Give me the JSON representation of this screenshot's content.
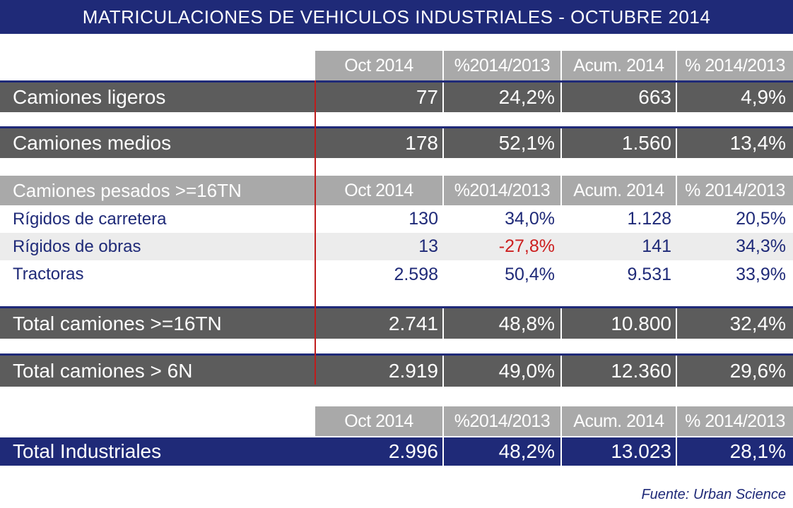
{
  "title": "MATRICULACIONES DE VEHICULOS INDUSTRIALES - OCTUBRE 2014",
  "columns": [
    "Oct 2014",
    "%2014/2013",
    "Acum. 2014",
    "% 2014/2013"
  ],
  "rows": {
    "ligeros": {
      "label": "Camiones ligeros",
      "v": [
        "77",
        "24,2%",
        "663",
        "4,9%"
      ]
    },
    "medios": {
      "label": "Camiones medios",
      "v": [
        "178",
        "52,1%",
        "1.560",
        "13,4%"
      ]
    },
    "pesados_header": {
      "label": "Camiones pesados >=16TN",
      "v": [
        "Oct 2014",
        "%2014/2013",
        "Acum. 2014",
        "% 2014/2013"
      ]
    },
    "rigidos_carretera": {
      "label": "Rígidos de carretera",
      "v": [
        "130",
        "34,0%",
        "1.128",
        "20,5%"
      ]
    },
    "rigidos_obras": {
      "label": "Rígidos de obras",
      "v": [
        "13",
        "-27,8%",
        "141",
        "34,3%"
      ]
    },
    "tractoras": {
      "label": "Tractoras",
      "v": [
        "2.598",
        "50,4%",
        "9.531",
        "33,9%"
      ]
    },
    "total_16": {
      "label": "Total camiones >=16TN",
      "v": [
        "2.741",
        "48,8%",
        "10.800",
        "32,4%"
      ]
    },
    "total_6": {
      "label": "Total camiones > 6N",
      "v": [
        "2.919",
        "49,0%",
        "12.360",
        "29,6%"
      ]
    },
    "total_ind": {
      "label": "Total Industriales",
      "v": [
        "2.996",
        "48,2%",
        "13.023",
        "28,1%"
      ]
    }
  },
  "source": "Fuente: Urban Science",
  "colors": {
    "navy": "#1f2a78",
    "dark_grey": "#5c5c5c",
    "header_grey": "#a9a9a9",
    "negative": "#cc1f1f",
    "divider": "#c01c1c"
  }
}
